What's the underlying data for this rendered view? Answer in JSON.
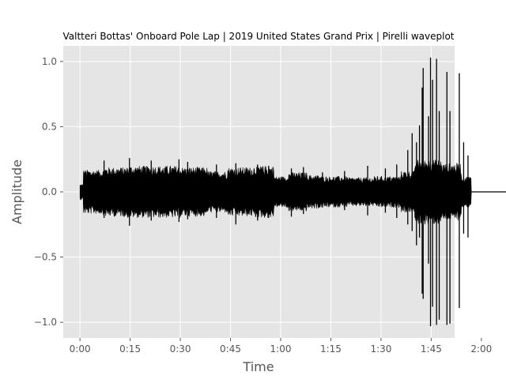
{
  "chart_data": {
    "type": "line",
    "title": "Valtteri Bottas' Onboard Pole Lap | 2019 United States Grand Prix | Pirelli waveplot",
    "xlabel": "Time",
    "ylabel": "Amplitude",
    "xlim": [
      -5,
      112
    ],
    "ylim": [
      -1.12,
      1.12
    ],
    "grid": true,
    "x_ticks": [
      {
        "value": 0,
        "label": "0:00"
      },
      {
        "value": 15,
        "label": "0:15"
      },
      {
        "value": 30,
        "label": "0:30"
      },
      {
        "value": 45,
        "label": "0:45"
      },
      {
        "value": 60,
        "label": "1:00"
      },
      {
        "value": 75,
        "label": "1:15"
      },
      {
        "value": 90,
        "label": "1:30"
      },
      {
        "value": 105,
        "label": "1:45"
      },
      {
        "value": 120,
        "label": "2:00"
      }
    ],
    "y_ticks": [
      {
        "value": 1.0,
        "label": "1.0"
      },
      {
        "value": 0.5,
        "label": "0.5"
      },
      {
        "value": 0.0,
        "label": "0.0"
      },
      {
        "value": -0.5,
        "label": "−0.5"
      },
      {
        "value": -1.0,
        "label": "−1.0"
      }
    ],
    "colors": {
      "background": "#e5e5e5",
      "grid": "#ffffff",
      "waveform": "#000000",
      "text": "#555555",
      "title": "#000000"
    },
    "duration_seconds": 128,
    "signal_end_seconds": 117,
    "envelope_segments": [
      {
        "start": 0,
        "end": 1,
        "amp": 0.06
      },
      {
        "start": 1,
        "end": 7,
        "amp": 0.17
      },
      {
        "start": 7,
        "end": 14,
        "amp": 0.19
      },
      {
        "start": 14,
        "end": 22,
        "amp": 0.2
      },
      {
        "start": 22,
        "end": 30,
        "amp": 0.2
      },
      {
        "start": 30,
        "end": 38,
        "amp": 0.19
      },
      {
        "start": 38,
        "end": 44,
        "amp": 0.16
      },
      {
        "start": 44,
        "end": 52,
        "amp": 0.19
      },
      {
        "start": 52,
        "end": 58,
        "amp": 0.2
      },
      {
        "start": 58,
        "end": 62,
        "amp": 0.12
      },
      {
        "start": 62,
        "end": 68,
        "amp": 0.15
      },
      {
        "start": 68,
        "end": 72,
        "amp": 0.13
      },
      {
        "start": 72,
        "end": 80,
        "amp": 0.12
      },
      {
        "start": 80,
        "end": 88,
        "amp": 0.11
      },
      {
        "start": 88,
        "end": 96,
        "amp": 0.12
      },
      {
        "start": 96,
        "end": 100,
        "amp": 0.16
      },
      {
        "start": 100,
        "end": 108,
        "amp": 0.25
      },
      {
        "start": 108,
        "end": 114,
        "amp": 0.22
      },
      {
        "start": 114,
        "end": 117,
        "amp": 0.12
      }
    ],
    "spikes": [
      {
        "time": 2.5,
        "top": 0.13,
        "bottom": -0.08
      },
      {
        "time": 7.2,
        "top": 0.24,
        "bottom": -0.2
      },
      {
        "time": 14.8,
        "top": 0.26,
        "bottom": -0.26
      },
      {
        "time": 21.3,
        "top": 0.24,
        "bottom": -0.22
      },
      {
        "time": 29.6,
        "top": 0.25,
        "bottom": -0.23
      },
      {
        "time": 32.2,
        "top": 0.23,
        "bottom": -0.21
      },
      {
        "time": 40.8,
        "top": 0.21,
        "bottom": -0.2
      },
      {
        "time": 46.6,
        "top": 0.22,
        "bottom": -0.25
      },
      {
        "time": 53.1,
        "top": 0.21,
        "bottom": -0.22
      },
      {
        "time": 56.4,
        "top": 0.2,
        "bottom": -0.2
      },
      {
        "time": 63.2,
        "top": 0.18,
        "bottom": -0.19
      },
      {
        "time": 66.8,
        "top": 0.19,
        "bottom": -0.17
      },
      {
        "time": 72.5,
        "top": 0.15,
        "bottom": -0.12
      },
      {
        "time": 79.1,
        "top": 0.16,
        "bottom": -0.14
      },
      {
        "time": 86.0,
        "top": 0.2,
        "bottom": -0.18
      },
      {
        "time": 91.3,
        "top": 0.18,
        "bottom": -0.16
      },
      {
        "time": 94.7,
        "top": 0.21,
        "bottom": -0.2
      },
      {
        "time": 98.0,
        "top": 0.32,
        "bottom": -0.25
      },
      {
        "time": 99.3,
        "top": 0.45,
        "bottom": -0.3
      },
      {
        "time": 100.6,
        "top": 0.38,
        "bottom": -0.41
      },
      {
        "time": 101.5,
        "top": 0.51,
        "bottom": -0.35
      },
      {
        "time": 102.3,
        "top": 0.8,
        "bottom": -0.78
      },
      {
        "time": 102.6,
        "top": 0.95,
        "bottom": -0.82
      },
      {
        "time": 104.2,
        "top": 0.58,
        "bottom": -0.55
      },
      {
        "time": 104.8,
        "top": 1.03,
        "bottom": -1.03
      },
      {
        "time": 105.4,
        "top": 0.86,
        "bottom": -0.88
      },
      {
        "time": 106.6,
        "top": 1.02,
        "bottom": -1.02
      },
      {
        "time": 107.4,
        "top": 0.62,
        "bottom": -0.98
      },
      {
        "time": 109.7,
        "top": 0.92,
        "bottom": -1.02
      },
      {
        "time": 110.6,
        "top": 0.62,
        "bottom": -1.01
      },
      {
        "time": 113.4,
        "top": 0.91,
        "bottom": -0.89
      },
      {
        "time": 114.7,
        "top": 0.38,
        "bottom": -0.32
      },
      {
        "time": 116.0,
        "top": 0.28,
        "bottom": -0.35
      }
    ]
  }
}
